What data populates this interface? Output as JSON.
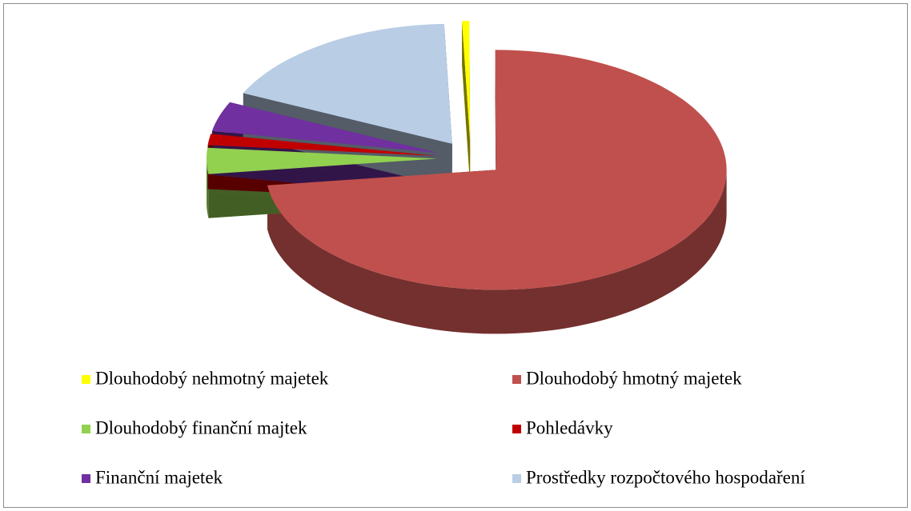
{
  "chart_data": {
    "type": "pie",
    "categories": [
      "Dlouhodobý nehmotný majetek",
      "Dlouhodobý hmotný majetek",
      "Dlouhodobý finanční majtek",
      "Pohledávky",
      "Finanční majetek",
      "Prostředky rozpočtového hospodaření"
    ],
    "values": [
      0.5,
      73,
      3.5,
      1.5,
      4,
      17.5
    ],
    "colors": [
      "#ffff00",
      "#c0504d",
      "#92d050",
      "#c00000",
      "#7030a0",
      "#b9cde5"
    ],
    "legend": "bottom"
  }
}
